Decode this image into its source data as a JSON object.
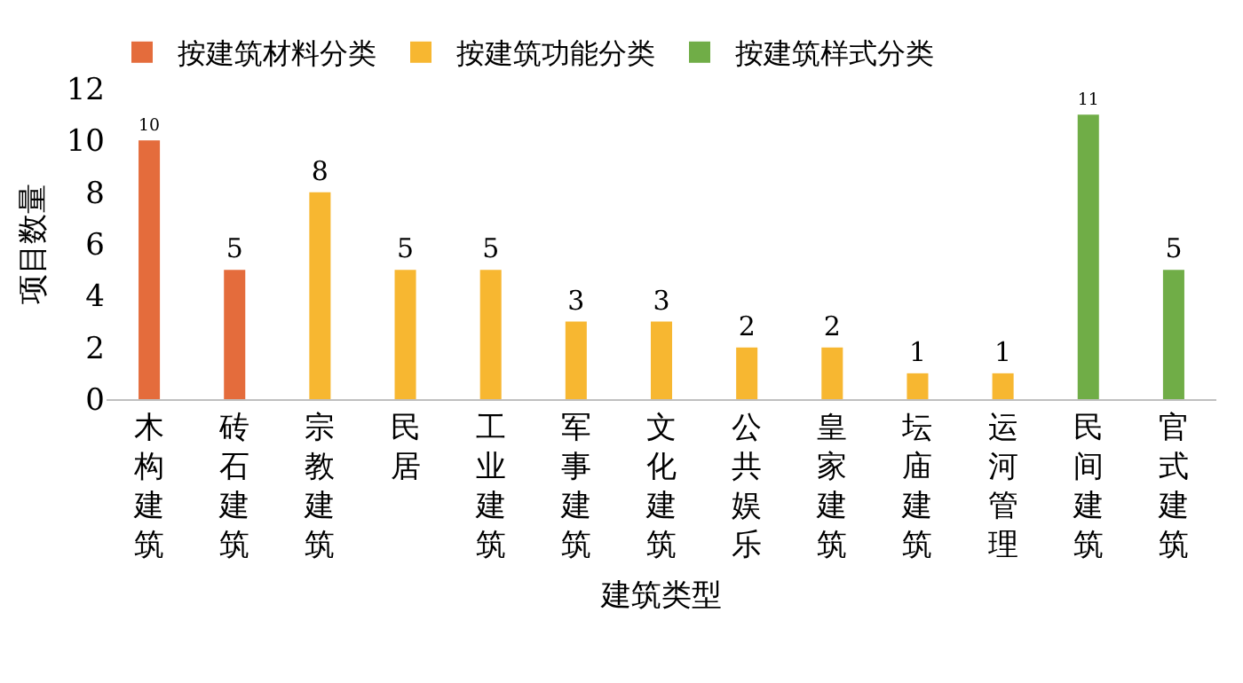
{
  "chart_data": {
    "type": "bar",
    "xlabel": "建筑类型",
    "ylabel": "项目数量",
    "categories": [
      "木构建筑",
      "砖石建筑",
      "宗教建筑",
      "民居",
      "工业建筑",
      "军事建筑",
      "文化建筑",
      "公共娱乐",
      "皇家建筑",
      "坛庙建筑",
      "运河管理",
      "民间建筑",
      "官式建筑"
    ],
    "series": [
      {
        "name": "按建筑材料分类",
        "color": "#e46c3c",
        "values": [
          10,
          5,
          null,
          null,
          null,
          null,
          null,
          null,
          null,
          null,
          null,
          null,
          null
        ]
      },
      {
        "name": "按建筑功能分类",
        "color": "#f7b731",
        "values": [
          null,
          null,
          8,
          5,
          5,
          3,
          3,
          2,
          2,
          1,
          1,
          null,
          null
        ]
      },
      {
        "name": "按建筑样式分类",
        "color": "#70ad47",
        "values": [
          null,
          null,
          null,
          null,
          null,
          null,
          null,
          null,
          null,
          null,
          null,
          11,
          5
        ]
      }
    ],
    "ylim": [
      0,
      12
    ],
    "yticks": [
      0,
      2,
      4,
      6,
      8,
      10,
      12
    ],
    "grid": false,
    "legend": "top",
    "data_labels": true
  }
}
